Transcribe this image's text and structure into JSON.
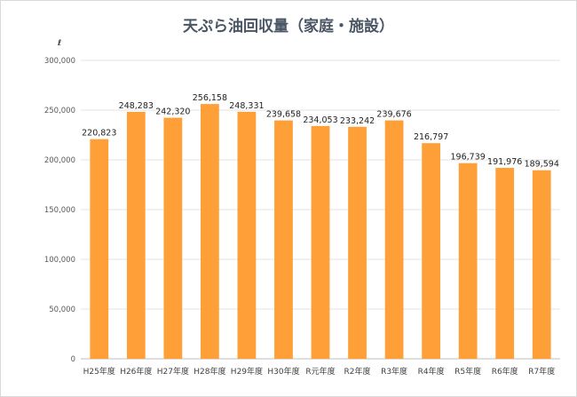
{
  "chart_data": {
    "type": "bar",
    "title": "天ぷら油回収量（家庭・施設）",
    "ylabel": "ℓ",
    "xlabel": "",
    "ylim": [
      0,
      300000
    ],
    "yticks": [
      "0",
      "50,000",
      "100,000",
      "150,000",
      "200,000",
      "250,000",
      "300,000"
    ],
    "ytick_values": [
      0,
      50000,
      100000,
      150000,
      200000,
      250000,
      300000
    ],
    "grid": true,
    "legend": "none",
    "bar_color": "#ff9f38",
    "categories": [
      "H25年度",
      "H26年度",
      "H27年度",
      "H28年度",
      "H29年度",
      "H30年度",
      "R元年度",
      "R2年度",
      "R3年度",
      "R4年度",
      "R5年度",
      "R6年度",
      "R7年度"
    ],
    "values": [
      220823,
      248283,
      242320,
      256158,
      248331,
      239658,
      234053,
      233242,
      239676,
      216797,
      196739,
      191976,
      189594
    ],
    "value_labels": [
      "220,823",
      "248,283",
      "242,320",
      "256,158",
      "248,331",
      "239,658",
      "234,053",
      "233,242",
      "239,676",
      "216,797",
      "196,739",
      "191,976",
      "189,594"
    ]
  }
}
